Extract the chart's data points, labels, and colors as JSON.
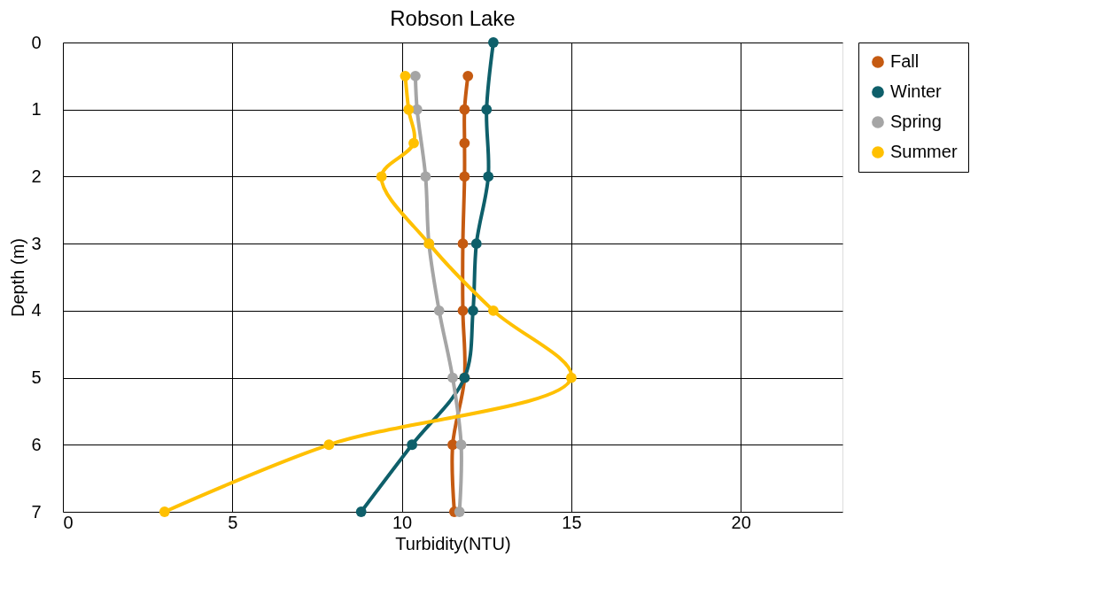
{
  "chart_data": {
    "type": "line",
    "title": "Robson Lake",
    "xlabel": "Turbidity(NTU)",
    "ylabel": "Depth (m)",
    "orientation": "horizontal",
    "xlim": [
      0,
      23
    ],
    "xticks": [
      0,
      5,
      10,
      15,
      20
    ],
    "ylim": [
      7,
      0
    ],
    "yticks": [
      0,
      1,
      2,
      3,
      4,
      5,
      6,
      7
    ],
    "grid": true,
    "legend": "right",
    "marker": "circle",
    "line_style": "solid",
    "series": [
      {
        "name": "Fall",
        "color": "#c55a11",
        "x": [
          0.5,
          1,
          1.5,
          2,
          3,
          4,
          5,
          6,
          7
        ],
        "values": [
          11.95,
          11.85,
          11.85,
          11.85,
          11.8,
          11.8,
          11.85,
          11.5,
          11.55
        ]
      },
      {
        "name": "Winter",
        "color": "#0e5f6a",
        "x": [
          0,
          1,
          2,
          3,
          4,
          5,
          6,
          7
        ],
        "values": [
          12.7,
          12.5,
          12.55,
          12.2,
          12.1,
          11.85,
          10.3,
          8.8
        ]
      },
      {
        "name": "Spring",
        "color": "#a5a5a5",
        "x": [
          0.5,
          1,
          2,
          3,
          4,
          5,
          6,
          7
        ],
        "values": [
          10.4,
          10.45,
          10.7,
          10.8,
          11.1,
          11.5,
          11.75,
          11.7
        ]
      },
      {
        "name": "Summer",
        "color": "#ffc000",
        "x": [
          0.5,
          1,
          1.5,
          2,
          3,
          4,
          5,
          6,
          7
        ],
        "values": [
          10.1,
          10.2,
          10.35,
          9.4,
          10.8,
          12.7,
          15.0,
          7.85,
          3.0
        ]
      }
    ]
  }
}
